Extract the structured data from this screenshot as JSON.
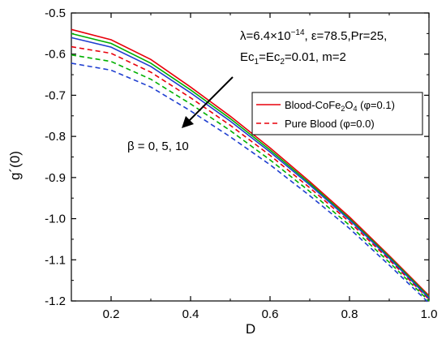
{
  "chart_data": {
    "type": "line",
    "xlabel": "D",
    "ylabel": "g´(0)",
    "xlim": [
      0.1,
      1.0
    ],
    "ylim": [
      -1.2,
      -0.5
    ],
    "xticks": [
      0.2,
      0.4,
      0.6,
      0.8,
      1.0
    ],
    "xtick_labels": [
      "0.2",
      "0.4",
      "0.6",
      "0.8",
      "1.0"
    ],
    "yticks": [
      -0.5,
      -0.6,
      -0.7,
      -0.8,
      -0.9,
      -1.0,
      -1.1,
      -1.2
    ],
    "ytick_labels": [
      "-0.5",
      "-0.6",
      "-0.7",
      "-0.8",
      "-0.9",
      "-1.0",
      "-1.1",
      "-1.2"
    ],
    "x": [
      0.1,
      0.2,
      0.3,
      0.4,
      0.5,
      0.6,
      0.7,
      0.8,
      0.9,
      1.0
    ],
    "series": [
      {
        "color": "#e8000b",
        "dash": false,
        "values": [
          -0.54,
          -0.565,
          -0.613,
          -0.68,
          -0.751,
          -0.828,
          -0.91,
          -0.996,
          -1.09,
          -1.187
        ]
      },
      {
        "color": "#00b000",
        "dash": false,
        "values": [
          -0.55,
          -0.574,
          -0.622,
          -0.687,
          -0.757,
          -0.833,
          -0.914,
          -1.0,
          -1.093,
          -1.19
        ]
      },
      {
        "color": "#1f3fd0",
        "dash": false,
        "values": [
          -0.56,
          -0.583,
          -0.63,
          -0.694,
          -0.763,
          -0.838,
          -0.918,
          -1.003,
          -1.096,
          -1.193
        ]
      },
      {
        "color": "#e8000b",
        "dash": true,
        "values": [
          -0.582,
          -0.598,
          -0.644,
          -0.706,
          -0.773,
          -0.846,
          -0.925,
          -1.008,
          -1.1,
          -1.196
        ]
      },
      {
        "color": "#00b000",
        "dash": true,
        "values": [
          -0.602,
          -0.618,
          -0.661,
          -0.721,
          -0.786,
          -0.857,
          -0.934,
          -1.016,
          -1.106,
          -1.2
        ]
      },
      {
        "color": "#1f3fd0",
        "dash": true,
        "values": [
          -0.622,
          -0.639,
          -0.68,
          -0.738,
          -0.801,
          -0.869,
          -0.944,
          -1.024,
          -1.113,
          -1.205
        ]
      }
    ],
    "legend": {
      "position": "upper-right",
      "entries": [
        {
          "label_main": "Blood-CoFe",
          "label_sub": "2",
          "label_main2": "O",
          "label_sub2": "4",
          "label_end": " (φ=0.1)",
          "color": "#e8000b",
          "dash": false
        },
        {
          "label_main": "Pure Blood (φ=0.0)",
          "color": "#e8000b",
          "dash": true
        }
      ]
    },
    "annotations": {
      "params_line1_a": "λ=6.4×10",
      "params_line1_exp": "−14",
      "params_line1_b": ", ε=78.5,Pr=25,",
      "params_line2_a": "Ec",
      "params_line2_sub1": "1",
      "params_line2_b": "=Ec",
      "params_line2_sub2": "2",
      "params_line2_c": "=0.01, m=2",
      "beta_label": "β = 0, 5, 10"
    }
  }
}
